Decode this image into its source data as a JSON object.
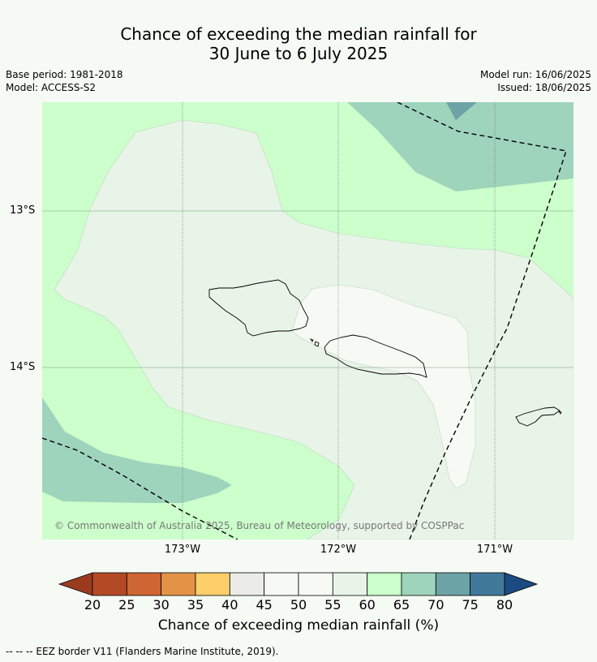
{
  "header": {
    "title_line1": "Chance of exceeding the median rainfall for",
    "title_line2": "30 June to 6 July 2025",
    "base_period": "Base period: 1981-2018",
    "model": "Model: ACCESS-S2",
    "model_run": "Model run: 16/06/2025",
    "issued": "Issued: 18/06/2025"
  },
  "map": {
    "lat_labels": [
      "13°S",
      "14°S"
    ],
    "lon_labels": [
      "173°W",
      "172°W",
      "171°W"
    ],
    "copyright": "© Commonwealth of Australia 2025, Bureau of Meteorology, supported by COSPPac",
    "region_colors": {
      "c40_45": "#ebebe8",
      "c45_50": "#f6f9f4",
      "c50_55": "#f6f9f4",
      "c55_60": "#e8f4e8",
      "c60_65": "#ccffcc",
      "c65_70": "#9ed4bc",
      "c70_75": "#6ca3a6"
    }
  },
  "colorbar": {
    "title": "Chance of exceeding median rainfall (%)",
    "ticks": [
      "20",
      "25",
      "30",
      "35",
      "40",
      "45",
      "50",
      "55",
      "60",
      "65",
      "70",
      "75",
      "80"
    ],
    "below_color": "#9a3b20",
    "above_color": "#1b4b82",
    "colors": [
      "#b34a25",
      "#cf6532",
      "#e49346",
      "#fece6b",
      "#ebebe8",
      "#f6f9f4",
      "#f6f9f4",
      "#e8f4e8",
      "#ccffcc",
      "#9ed4bc",
      "#6ca3a6",
      "#41799a"
    ]
  },
  "footer": {
    "legend_line": "-- -- -- EEZ border V11 (Flanders Marine Institute, 2019)."
  }
}
